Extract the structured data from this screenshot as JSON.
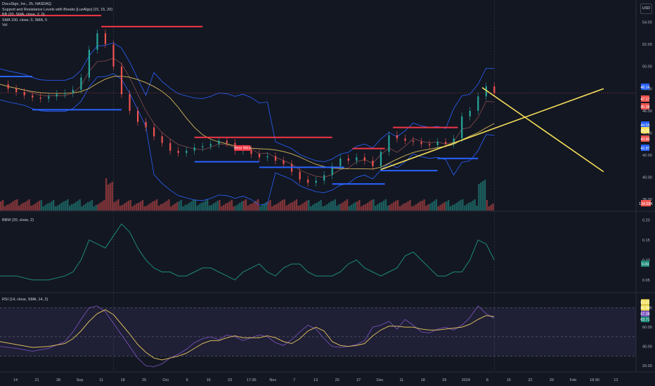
{
  "legend": {
    "line1": "DocuSign, Inc., 2h, NASDAQ",
    "line2": "Support and Resistance Levels with Breaks [LuxAlgo] (15, 15, 20)",
    "line3": "BB (20, SMA, close, 2, 0)",
    "line4": "SMA 100, close, 0, SMA, 5",
    "line5": "Vol"
  },
  "currency": "USD",
  "pane_titles": {
    "bbw": "BBW (20, close, 2)",
    "rsi": "RSI (14, close, SMA, 14, 2)"
  },
  "colors": {
    "background": "#131722",
    "price_up": "#26a69a",
    "price_down": "#ef5350",
    "resistance": "#f23645",
    "support": "#2962ff",
    "bollinger": "#2962ff",
    "sma": "#d7b85c",
    "trendlines": "#f6e05a",
    "bbw_line": "#1e8a7a",
    "rsi_line": "#7e57c2",
    "rsi_ma": "#d7b85c"
  },
  "chart_data": [
    {
      "type": "candlestick",
      "title": "DocuSign, Inc., 2h, NASDAQ",
      "x_ticks": [
        "14",
        "21",
        "28",
        "Sep",
        "11",
        "18",
        "25",
        "Oct",
        "9",
        "16",
        "23",
        "17:30",
        "Nov",
        "7",
        "13",
        "20",
        "27",
        "Dec",
        "11",
        "18",
        "26",
        "2024",
        "8",
        "15",
        "22",
        "29",
        "Feb",
        "18:30",
        "12"
      ],
      "y_ticks": [
        "54.00",
        "52.00",
        "50.00",
        "48.00",
        "46.00",
        "44.00",
        "42.00",
        "40.00",
        "38.00"
      ],
      "ylim": [
        37,
        56
      ],
      "price_series": [
        {
          "t": 0,
          "c": 48.4
        },
        {
          "t": 2,
          "c": 48.0
        },
        {
          "t": 4,
          "c": 47.7
        },
        {
          "t": 6,
          "c": 47.4
        },
        {
          "t": 8,
          "c": 47.2
        },
        {
          "t": 10,
          "c": 47.1
        },
        {
          "t": 12,
          "c": 47.3
        },
        {
          "t": 14,
          "c": 47.5
        },
        {
          "t": 16,
          "c": 47.6
        },
        {
          "t": 18,
          "c": 47.9
        },
        {
          "t": 20,
          "c": 49.0
        },
        {
          "t": 22,
          "c": 51.5
        },
        {
          "t": 24,
          "c": 53.0
        },
        {
          "t": 26,
          "c": 52.0
        },
        {
          "t": 28,
          "c": 50.0
        },
        {
          "t": 30,
          "c": 47.5
        },
        {
          "t": 32,
          "c": 46.0
        },
        {
          "t": 34,
          "c": 45.0
        },
        {
          "t": 36,
          "c": 44.5
        },
        {
          "t": 38,
          "c": 43.7
        },
        {
          "t": 40,
          "c": 43.1
        },
        {
          "t": 42,
          "c": 42.4
        },
        {
          "t": 44,
          "c": 42.2
        },
        {
          "t": 46,
          "c": 42.4
        },
        {
          "t": 48,
          "c": 42.7
        },
        {
          "t": 50,
          "c": 42.8
        },
        {
          "t": 52,
          "c": 43.0
        },
        {
          "t": 54,
          "c": 43.3
        },
        {
          "t": 56,
          "c": 43.1
        },
        {
          "t": 58,
          "c": 42.4
        },
        {
          "t": 60,
          "c": 42.5
        },
        {
          "t": 62,
          "c": 42.1
        },
        {
          "t": 64,
          "c": 41.8
        },
        {
          "t": 66,
          "c": 41.9
        },
        {
          "t": 68,
          "c": 41.5
        },
        {
          "t": 70,
          "c": 41.2
        },
        {
          "t": 72,
          "c": 40.5
        },
        {
          "t": 74,
          "c": 39.8
        },
        {
          "t": 76,
          "c": 39.5
        },
        {
          "t": 78,
          "c": 39.7
        },
        {
          "t": 80,
          "c": 40.2
        },
        {
          "t": 82,
          "c": 41.0
        },
        {
          "t": 84,
          "c": 41.7
        },
        {
          "t": 86,
          "c": 41.5
        },
        {
          "t": 88,
          "c": 41.8
        },
        {
          "t": 90,
          "c": 41.5
        },
        {
          "t": 92,
          "c": 41.0
        },
        {
          "t": 94,
          "c": 42.3
        },
        {
          "t": 96,
          "c": 43.8
        },
        {
          "t": 98,
          "c": 43.5
        },
        {
          "t": 100,
          "c": 43.3
        },
        {
          "t": 102,
          "c": 43.2
        },
        {
          "t": 104,
          "c": 43.0
        },
        {
          "t": 106,
          "c": 42.9
        },
        {
          "t": 108,
          "c": 43.2
        },
        {
          "t": 110,
          "c": 43.0
        },
        {
          "t": 112,
          "c": 43.5
        },
        {
          "t": 114,
          "c": 45.5
        },
        {
          "t": 116,
          "c": 46.0
        },
        {
          "t": 118,
          "c": 47.3
        },
        {
          "t": 120,
          "c": 48.2
        },
        {
          "t": 122,
          "c": 47.6
        }
      ],
      "resistance_levels": [
        {
          "from": 0,
          "to": 25,
          "y": 54.6
        },
        {
          "from": 25,
          "to": 50,
          "y": 53.6
        },
        {
          "from": 48,
          "to": 82,
          "y": 43.6
        },
        {
          "from": 87,
          "to": 95,
          "y": 42.6
        },
        {
          "from": 97,
          "to": 113,
          "y": 44.5
        }
      ],
      "support_levels": [
        {
          "from": 0,
          "to": 8,
          "y": 49.1
        },
        {
          "from": 8,
          "to": 30,
          "y": 46.1
        },
        {
          "from": 48,
          "to": 64,
          "y": 41.4
        },
        {
          "from": 64,
          "to": 85,
          "y": 40.9
        },
        {
          "from": 82,
          "to": 95,
          "y": 39.4
        },
        {
          "from": 94,
          "to": 108,
          "y": 40.6
        },
        {
          "from": 108,
          "to": 118,
          "y": 41.7
        }
      ],
      "trendlines": [
        {
          "from": [
            94,
            40.7
          ],
          "to": [
            149,
            48.0
          ]
        },
        {
          "from": [
            119,
            48.1
          ],
          "to": [
            149,
            40.5
          ]
        }
      ],
      "tags": [
        "Bear Wick"
      ],
      "price_scale_labels": [
        {
          "value": "48.14",
          "color": "#2962ff"
        },
        {
          "value": "47.17",
          "color": "#ef5350"
        },
        {
          "value": "45.38",
          "color": "#ef5350"
        },
        {
          "value": "44.55",
          "color": "#2962ff"
        },
        {
          "value": "44.26",
          "color": "#f6e05a"
        },
        {
          "value": "43.80",
          "color": "#ef5350"
        },
        {
          "value": "42.87",
          "color": "#2962ff"
        }
      ],
      "volume_label": "134.58K"
    },
    {
      "type": "line",
      "title": "BBW (20, close, 2)",
      "y_ticks": [
        "0.20",
        "0.15",
        "0.10",
        "0.05"
      ],
      "ylim": [
        0.02,
        0.22
      ],
      "x": [
        0,
        4,
        8,
        12,
        16,
        18,
        20,
        22,
        24,
        26,
        28,
        30,
        32,
        34,
        36,
        38,
        40,
        42,
        44,
        46,
        48,
        50,
        52,
        54,
        56,
        58,
        60,
        62,
        64,
        66,
        68,
        70,
        72,
        74,
        76,
        78,
        80,
        82,
        84,
        86,
        88,
        90,
        92,
        94,
        96,
        98,
        100,
        102,
        104,
        106,
        108,
        110,
        112,
        114,
        116,
        118,
        120,
        122
      ],
      "values": [
        0.06,
        0.06,
        0.05,
        0.05,
        0.06,
        0.07,
        0.1,
        0.15,
        0.14,
        0.13,
        0.16,
        0.19,
        0.17,
        0.13,
        0.1,
        0.08,
        0.07,
        0.07,
        0.06,
        0.06,
        0.07,
        0.08,
        0.08,
        0.07,
        0.06,
        0.05,
        0.07,
        0.08,
        0.09,
        0.07,
        0.06,
        0.08,
        0.09,
        0.09,
        0.07,
        0.06,
        0.06,
        0.06,
        0.07,
        0.09,
        0.1,
        0.08,
        0.07,
        0.06,
        0.07,
        0.08,
        0.11,
        0.12,
        0.1,
        0.08,
        0.06,
        0.06,
        0.07,
        0.07,
        0.1,
        0.15,
        0.14,
        0.1
      ],
      "current_label": "0.09"
    },
    {
      "type": "line",
      "title": "RSI (14, close, SMA, 14, 2)",
      "y_ticks": [
        "80.00",
        "60.00",
        "40.00",
        "20.00"
      ],
      "ylim": [
        15,
        95
      ],
      "x": [
        0,
        4,
        8,
        12,
        16,
        18,
        20,
        22,
        24,
        26,
        28,
        30,
        32,
        34,
        36,
        38,
        40,
        42,
        44,
        46,
        48,
        50,
        52,
        54,
        56,
        58,
        60,
        62,
        64,
        66,
        68,
        70,
        72,
        74,
        76,
        78,
        80,
        82,
        84,
        86,
        88,
        90,
        92,
        94,
        96,
        98,
        100,
        102,
        104,
        106,
        108,
        110,
        112,
        114,
        116,
        118,
        120,
        122
      ],
      "rsi_ma_values": [
        45,
        42,
        39,
        40,
        43,
        48,
        56,
        66,
        74,
        78,
        73,
        63,
        53,
        42,
        34,
        28,
        26,
        28,
        30,
        33,
        38,
        43,
        46,
        46,
        49,
        51,
        49,
        49,
        49,
        51,
        49,
        45,
        43,
        48,
        56,
        60,
        56,
        45,
        41,
        40,
        41,
        43,
        51,
        57,
        61,
        61,
        60,
        60,
        58,
        57,
        57,
        58,
        59,
        60,
        63,
        68,
        72,
        71
      ],
      "rsi_values": [
        40,
        38,
        35,
        38,
        45,
        55,
        68,
        80,
        82,
        76,
        64,
        52,
        40,
        28,
        20,
        19,
        22,
        28,
        32,
        37,
        44,
        48,
        50,
        47,
        52,
        50,
        46,
        49,
        52,
        50,
        44,
        41,
        47,
        55,
        62,
        58,
        48,
        40,
        39,
        40,
        42,
        46,
        60,
        62,
        66,
        58,
        68,
        62,
        55,
        54,
        58,
        60,
        57,
        62,
        70,
        82,
        74,
        69
      ],
      "labels": [
        "83.31",
        "80.98",
        "67.38",
        "63.71"
      ]
    }
  ]
}
